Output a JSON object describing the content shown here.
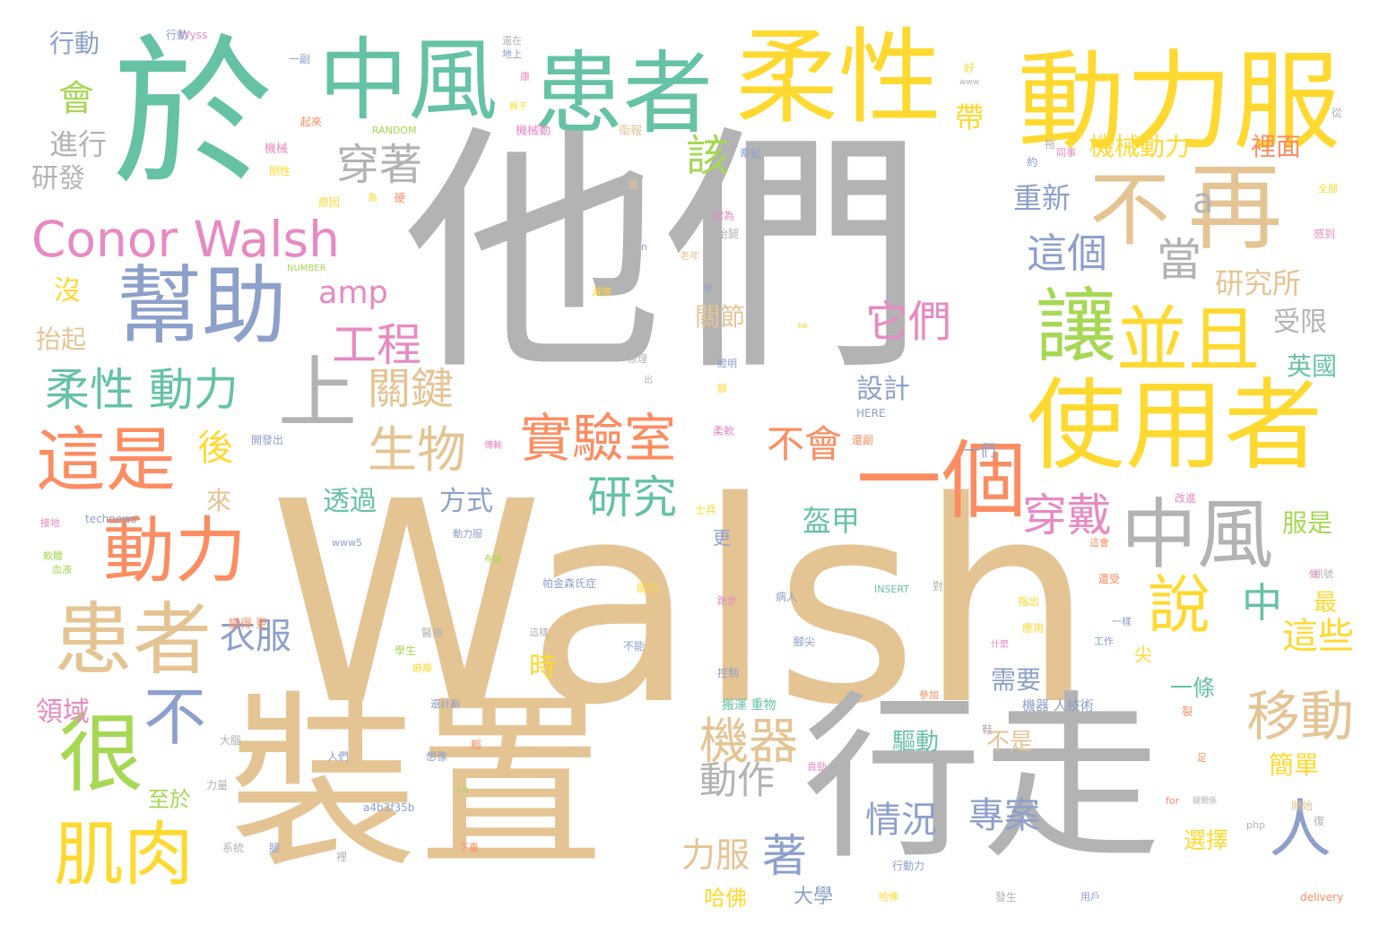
{
  "colors": {
    "gray": "#b3b3b3",
    "tan": "#e5c494",
    "green": "#66c2a5",
    "blue": "#8da0cb",
    "yellow": "#ffd92f",
    "orange": "#fc8d62",
    "pink": "#e78ac3",
    "lime": "#a6d854"
  },
  "words": [
    {
      "text": "Walsh",
      "color": "tan"
    },
    {
      "text": "他們",
      "color": "gray"
    },
    {
      "text": "裝置",
      "color": "tan"
    },
    {
      "text": "行走",
      "color": "gray"
    },
    {
      "text": "於",
      "color": "green"
    },
    {
      "text": "動力服",
      "color": "yellow"
    },
    {
      "text": "柔性",
      "color": "yellow"
    },
    {
      "text": "患者",
      "color": "green"
    },
    {
      "text": "中風",
      "color": "green"
    },
    {
      "text": "使用者",
      "color": "yellow"
    },
    {
      "text": "再",
      "color": "tan"
    },
    {
      "text": "不",
      "color": "tan"
    },
    {
      "text": "幫助",
      "color": "blue"
    },
    {
      "text": "患者",
      "color": "tan"
    },
    {
      "text": "一個",
      "color": "orange"
    },
    {
      "text": "讓",
      "color": "lime"
    },
    {
      "text": "並且",
      "color": "yellow"
    },
    {
      "text": "很",
      "color": "lime"
    },
    {
      "text": "中風",
      "color": "gray"
    },
    {
      "text": "這是",
      "color": "orange"
    },
    {
      "text": "動力",
      "color": "orange"
    },
    {
      "text": "肌肉",
      "color": "yellow"
    },
    {
      "text": "Conor Walsh",
      "color": "pink"
    },
    {
      "text": "實驗室",
      "color": "orange"
    },
    {
      "text": "上",
      "color": "gray"
    },
    {
      "text": "說",
      "color": "yellow"
    },
    {
      "text": "不",
      "color": "blue"
    },
    {
      "text": "人",
      "color": "blue"
    },
    {
      "text": "柔性 動力",
      "color": "green"
    },
    {
      "text": "移動",
      "color": "tan"
    },
    {
      "text": "機器",
      "color": "tan"
    },
    {
      "text": "生物",
      "color": "tan"
    },
    {
      "text": "研究",
      "color": "green"
    },
    {
      "text": "穿戴",
      "color": "pink"
    },
    {
      "text": "穿著",
      "color": "gray"
    },
    {
      "text": "當",
      "color": "gray"
    },
    {
      "text": "工程",
      "color": "pink"
    },
    {
      "text": "它們",
      "color": "pink"
    },
    {
      "text": "不會",
      "color": "orange"
    },
    {
      "text": "關鍵",
      "color": "tan"
    },
    {
      "text": "這個",
      "color": "blue"
    },
    {
      "text": "這些",
      "color": "yellow"
    },
    {
      "text": "衣服",
      "color": "blue"
    },
    {
      "text": "後",
      "color": "yellow"
    },
    {
      "text": "該",
      "color": "lime"
    },
    {
      "text": "會",
      "color": "lime"
    },
    {
      "text": "a",
      "color": "gray"
    },
    {
      "text": "amp",
      "color": "pink"
    },
    {
      "text": "著",
      "color": "blue"
    },
    {
      "text": "中",
      "color": "green"
    },
    {
      "text": "動作",
      "color": "gray"
    },
    {
      "text": "情況",
      "color": "blue"
    },
    {
      "text": "專案",
      "color": "blue"
    },
    {
      "text": "力服",
      "color": "tan"
    },
    {
      "text": "盔甲",
      "color": "green"
    },
    {
      "text": "透過",
      "color": "green"
    },
    {
      "text": "方式",
      "color": "blue"
    },
    {
      "text": "進行",
      "color": "gray"
    },
    {
      "text": "研究所",
      "color": "tan"
    },
    {
      "text": "重新",
      "color": "blue"
    },
    {
      "text": "機械動力",
      "color": "yellow"
    },
    {
      "text": "裡面",
      "color": "orange"
    },
    {
      "text": "受限",
      "color": "gray"
    },
    {
      "text": "英國",
      "color": "green"
    },
    {
      "text": "設計",
      "color": "blue"
    },
    {
      "text": "需要",
      "color": "blue"
    },
    {
      "text": "一條",
      "color": "green"
    },
    {
      "text": "服是",
      "color": "lime"
    },
    {
      "text": "簡單",
      "color": "yellow"
    },
    {
      "text": "選擇",
      "color": "yellow"
    },
    {
      "text": "驅動",
      "color": "green"
    },
    {
      "text": "不是",
      "color": "tan"
    },
    {
      "text": "時",
      "color": "yellow"
    },
    {
      "text": "至於",
      "color": "lime"
    },
    {
      "text": "來",
      "color": "tan"
    },
    {
      "text": "領域",
      "color": "pink"
    },
    {
      "text": "抬起",
      "color": "tan"
    },
    {
      "text": "沒",
      "color": "yellow"
    },
    {
      "text": "研發",
      "color": "gray"
    },
    {
      "text": "行動",
      "color": "blue"
    },
    {
      "text": "帶",
      "color": "yellow"
    },
    {
      "text": "關節",
      "color": "tan"
    },
    {
      "text": "哈佛",
      "color": "yellow"
    },
    {
      "text": "大學",
      "color": "blue"
    },
    {
      "text": "最",
      "color": "yellow"
    },
    {
      "text": "尖",
      "color": "yellow"
    },
    {
      "text": "更",
      "color": "blue"
    },
    {
      "text": "一們",
      "color": "blue"
    },
    {
      "text": "Wyss",
      "color": "pink"
    },
    {
      "text": "technews",
      "color": "blue"
    },
    {
      "text": "RANDOM",
      "color": "lime"
    },
    {
      "text": "NUMBER",
      "color": "lime"
    },
    {
      "text": "INSERT",
      "color": "green"
    },
    {
      "text": "HERE",
      "color": "blue"
    },
    {
      "text": "www5",
      "color": "blue"
    },
    {
      "text": "www",
      "color": "gray"
    },
    {
      "text": "delivery",
      "color": "orange"
    },
    {
      "text": "a4b3f35b",
      "color": "blue"
    },
    {
      "text": "php",
      "color": "gray"
    },
    {
      "text": "for",
      "color": "orange"
    },
    {
      "text": "cb",
      "color": "lime"
    },
    {
      "text": "tw",
      "color": "yellow"
    },
    {
      "text": "n",
      "color": "blue"
    },
    {
      "text": "機械動",
      "color": "pink"
    },
    {
      "text": "機械",
      "color": "pink"
    },
    {
      "text": "剛性",
      "color": "yellow"
    },
    {
      "text": "原因",
      "color": "yellow"
    },
    {
      "text": "為",
      "color": "yellow"
    },
    {
      "text": "硬",
      "color": "orange"
    },
    {
      "text": "起來",
      "color": "orange"
    },
    {
      "text": "一副",
      "color": "blue"
    },
    {
      "text": "地上",
      "color": "blue"
    },
    {
      "text": "康",
      "color": "pink"
    },
    {
      "text": "還在",
      "color": "gray"
    },
    {
      "text": "裤子",
      "color": "yellow"
    },
    {
      "text": "衛報",
      "color": "tan"
    },
    {
      "text": "認為",
      "color": "pink"
    },
    {
      "text": "抬腿",
      "color": "gray"
    },
    {
      "text": "老年",
      "color": "tan"
    },
    {
      "text": "證明",
      "color": "blue"
    },
    {
      "text": "原理",
      "color": "gray"
    },
    {
      "text": "柔軟",
      "color": "pink"
    },
    {
      "text": "開發出",
      "color": "blue"
    },
    {
      "text": "還副",
      "color": "orange"
    },
    {
      "text": "傳輸",
      "color": "pink"
    },
    {
      "text": "士兵",
      "color": "yellow"
    },
    {
      "text": "動力服",
      "color": "blue"
    },
    {
      "text": "布爾",
      "color": "lime"
    },
    {
      "text": "帕金森氏症",
      "color": "blue"
    },
    {
      "text": "能力",
      "color": "yellow"
    },
    {
      "text": "跑步",
      "color": "pink"
    },
    {
      "text": "病人",
      "color": "blue"
    },
    {
      "text": "腳尖",
      "color": "blue"
    },
    {
      "text": "醫療",
      "color": "gray"
    },
    {
      "text": "學生",
      "color": "lime"
    },
    {
      "text": "麻痺",
      "color": "yellow"
    },
    {
      "text": "這樣",
      "color": "gray"
    },
    {
      "text": "不能",
      "color": "blue"
    },
    {
      "text": "控制",
      "color": "blue"
    },
    {
      "text": "搬運 重物",
      "color": "green"
    },
    {
      "text": "機器 人技術",
      "color": "blue"
    },
    {
      "text": "參加",
      "color": "orange"
    },
    {
      "text": "還計劃",
      "color": "blue"
    },
    {
      "text": "變得 更",
      "color": "orange"
    },
    {
      "text": "大腦",
      "color": "gray"
    },
    {
      "text": "人們",
      "color": "blue"
    },
    {
      "text": "想像",
      "color": "blue"
    },
    {
      "text": "力量",
      "color": "gray"
    },
    {
      "text": "系統",
      "color": "gray"
    },
    {
      "text": "腿",
      "color": "blue"
    },
    {
      "text": "下垂",
      "color": "orange"
    },
    {
      "text": "裡",
      "color": "gray"
    },
    {
      "text": "貢勁",
      "color": "pink"
    },
    {
      "text": "行動力",
      "color": "blue"
    },
    {
      "text": "發生",
      "color": "gray"
    },
    {
      "text": "用戶",
      "color": "blue"
    },
    {
      "text": "哈佛",
      "color": "yellow"
    },
    {
      "text": "指出",
      "color": "yellow"
    },
    {
      "text": "應用",
      "color": "yellow"
    },
    {
      "text": "一樣",
      "color": "blue"
    },
    {
      "text": "工作",
      "color": "blue"
    },
    {
      "text": "還受",
      "color": "orange"
    },
    {
      "text": "訊號",
      "color": "gray"
    },
    {
      "text": "改進",
      "color": "pink"
    },
    {
      "text": "這會",
      "color": "orange"
    },
    {
      "text": "足",
      "color": "orange"
    },
    {
      "text": "開始",
      "color": "tan"
    },
    {
      "text": "腿關係",
      "color": "gray"
    },
    {
      "text": "血液",
      "color": "lime"
    },
    {
      "text": "軟體",
      "color": "lime"
    },
    {
      "text": "接地",
      "color": "pink"
    },
    {
      "text": "行動",
      "color": "blue"
    },
    {
      "text": "減接",
      "color": "yellow"
    },
    {
      "text": "好",
      "color": "yellow"
    },
    {
      "text": "從",
      "color": "gray"
    },
    {
      "text": "全部",
      "color": "yellow"
    },
    {
      "text": "感到",
      "color": "pink"
    },
    {
      "text": "同事",
      "color": "pink"
    },
    {
      "text": "約",
      "color": "blue"
    },
    {
      "text": "拖",
      "color": "gray"
    },
    {
      "text": "牽扯",
      "color": "blue"
    },
    {
      "text": "腳",
      "color": "yellow"
    },
    {
      "text": "對",
      "color": "gray"
    },
    {
      "text": "做",
      "color": "pink"
    },
    {
      "text": "復",
      "color": "gray"
    },
    {
      "text": "穿",
      "color": "blue"
    },
    {
      "text": "出",
      "color": "gray"
    },
    {
      "text": "裂",
      "color": "orange"
    },
    {
      "text": "什麼",
      "color": "pink"
    },
    {
      "text": "鞋",
      "color": "gray"
    },
    {
      "text": "輕",
      "color": "orange"
    },
    {
      "text": "遺",
      "color": "tan"
    }
  ]
}
